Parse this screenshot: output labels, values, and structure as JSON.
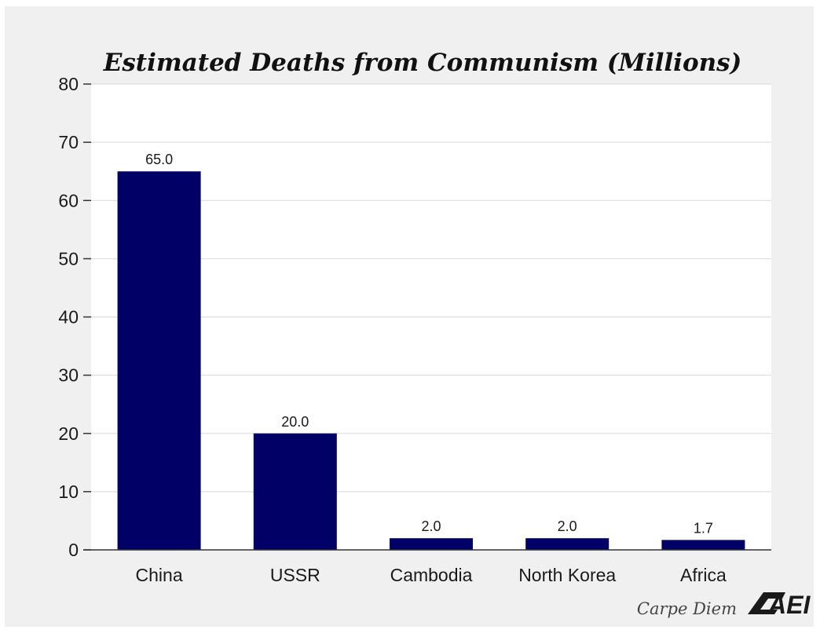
{
  "chart_data": {
    "type": "bar",
    "title": "Estimated Deaths from Communism (Millions)",
    "categories": [
      "China",
      "USSR",
      "Cambodia",
      "North Korea",
      "Africa"
    ],
    "values": [
      65.0,
      20.0,
      2.0,
      2.0,
      1.7
    ],
    "data_labels": [
      "65.0",
      "20.0",
      "2.0",
      "2.0",
      "1.7"
    ],
    "ylim": [
      0,
      80
    ],
    "yticks": [
      0,
      10,
      20,
      30,
      40,
      50,
      60,
      70,
      80
    ],
    "xlabel": "",
    "ylabel": "",
    "grid": true,
    "bar_color": "#000066"
  },
  "footer": {
    "credit": "Carpe Diem",
    "logo_text": "AEI"
  }
}
